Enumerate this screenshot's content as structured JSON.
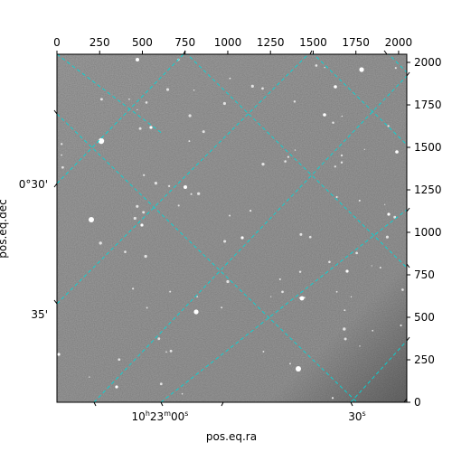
{
  "image": {
    "pixel_range": [
      0,
      2048
    ],
    "top_axis": {
      "ticks": [
        0,
        250,
        500,
        750,
        1000,
        1250,
        1500,
        1750,
        2000
      ]
    },
    "right_axis": {
      "ticks": [
        0,
        250,
        500,
        750,
        1000,
        1250,
        1500,
        1750,
        2000
      ]
    }
  },
  "labels": {
    "x_axis": "pos.eq.ra",
    "y_axis": "pos.eq.dec",
    "ra_ticks": [
      {
        "text": "10h23m00s",
        "main": "10",
        "h": "h",
        "mid": "23",
        "m": "m",
        "rest": "00",
        "s": "s"
      },
      {
        "text": "30s",
        "main": "30",
        "s": "s"
      }
    ],
    "dec_ticks": [
      "0°30'",
      "35'"
    ]
  },
  "grid_color": "#00d8d8",
  "image_tone": "#7f7f7f"
}
